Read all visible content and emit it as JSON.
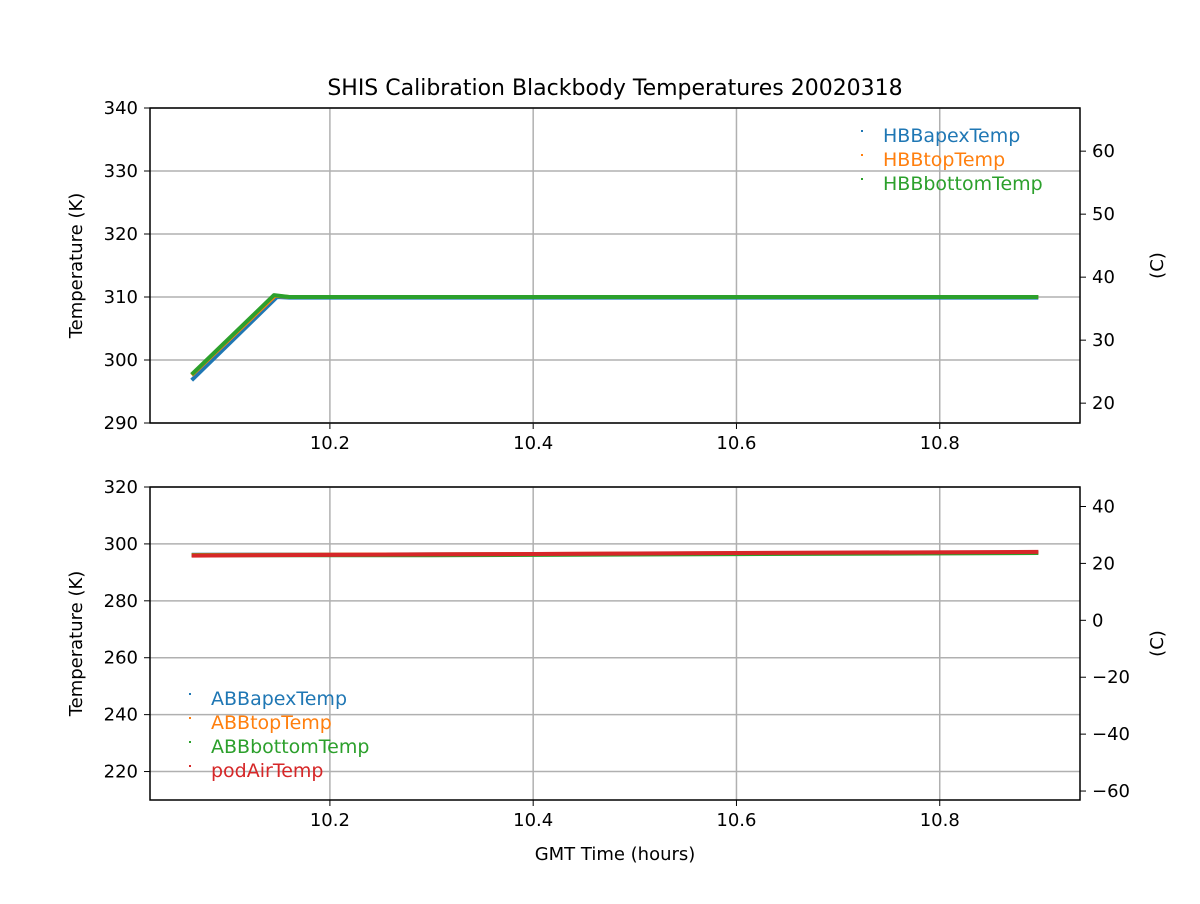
{
  "chart_data": [
    {
      "type": "scatter",
      "title": "SHIS Calibration Blackbody Temperatures 20020318",
      "xlabel": "",
      "ylabel": "Temperature (K)",
      "ylabel_right": "(C)",
      "xlim": [
        10.023,
        10.938
      ],
      "ylim": [
        290,
        340
      ],
      "xticks": [
        10.2,
        10.4,
        10.6,
        10.8
      ],
      "xtick_labels": [
        "10.2",
        "10.4",
        "10.6",
        "10.8"
      ],
      "yticks": [
        290,
        300,
        310,
        320,
        330,
        340
      ],
      "ytick_labels": [
        "290",
        "300",
        "310",
        "320",
        "330",
        "340"
      ],
      "yticks_right": [
        20,
        30,
        40,
        50,
        60
      ],
      "ytick_labels_right": [
        "20",
        "30",
        "40",
        "50",
        "60"
      ],
      "grid": true,
      "legend_placement": "top-right",
      "series": [
        {
          "name": "HBBapexTemp",
          "color": "#1f77b4",
          "x": [
            10.064,
            10.148,
            10.16,
            10.897
          ],
          "y": [
            296.8,
            310.0,
            309.9,
            309.9
          ]
        },
        {
          "name": "HBBtopTemp",
          "color": "#ff7f0e",
          "x": [
            10.064,
            10.146,
            10.16,
            10.897
          ],
          "y": [
            297.6,
            310.2,
            310.0,
            310.0
          ]
        },
        {
          "name": "HBBbottomTemp",
          "color": "#2ca02c",
          "x": [
            10.064,
            10.145,
            10.16,
            10.897
          ],
          "y": [
            297.7,
            310.3,
            310.0,
            310.0
          ]
        }
      ]
    },
    {
      "type": "scatter",
      "title": "",
      "xlabel": "GMT Time (hours)",
      "ylabel": "Temperature (K)",
      "ylabel_right": "(C)",
      "xlim": [
        10.023,
        10.938
      ],
      "ylim": [
        210,
        320
      ],
      "xticks": [
        10.2,
        10.4,
        10.6,
        10.8
      ],
      "xtick_labels": [
        "10.2",
        "10.4",
        "10.6",
        "10.8"
      ],
      "yticks": [
        220,
        240,
        260,
        280,
        300,
        320
      ],
      "ytick_labels": [
        "220",
        "240",
        "260",
        "280",
        "300",
        "320"
      ],
      "yticks_right": [
        -60,
        -40,
        -20,
        0,
        20,
        40
      ],
      "ytick_labels_right": [
        "−60",
        "−40",
        "−20",
        "0",
        "20",
        "40"
      ],
      "grid": true,
      "legend_placement": "bottom-left",
      "series": [
        {
          "name": "ABBapexTemp",
          "color": "#1f77b4",
          "x": [
            10.064,
            10.3,
            10.6,
            10.897
          ],
          "y": [
            296.2,
            296.3,
            296.6,
            297.0
          ]
        },
        {
          "name": "ABBtopTemp",
          "color": "#ff7f0e",
          "x": [
            10.064,
            10.3,
            10.6,
            10.897
          ],
          "y": [
            296.1,
            296.3,
            296.7,
            297.0
          ]
        },
        {
          "name": "ABBbottomTemp",
          "color": "#2ca02c",
          "x": [
            10.064,
            10.3,
            10.6,
            10.897
          ],
          "y": [
            296.0,
            296.0,
            296.4,
            296.8
          ]
        },
        {
          "name": "podAirTemp",
          "color": "#d62728",
          "x": [
            10.064,
            10.3,
            10.6,
            10.897
          ],
          "y": [
            295.9,
            296.3,
            296.8,
            297.2
          ]
        }
      ]
    }
  ]
}
